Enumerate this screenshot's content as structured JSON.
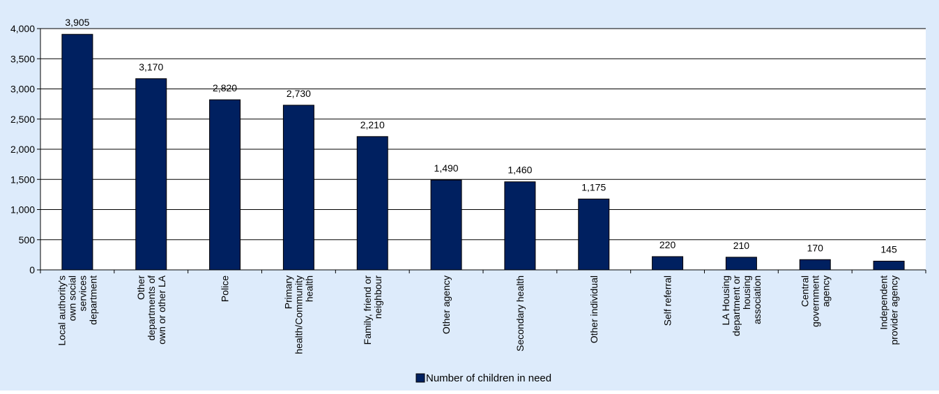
{
  "chart_data": {
    "type": "bar",
    "categories": [
      [
        "Local authority's",
        "own social",
        "services",
        "department"
      ],
      [
        "Other",
        "departments of",
        "own or other LA"
      ],
      [
        "Police"
      ],
      [
        "Primary",
        "health/Community",
        "health"
      ],
      [
        "Family, friend or",
        "neighbour"
      ],
      [
        "Other agency"
      ],
      [
        "Secondary health"
      ],
      [
        "Other individual"
      ],
      [
        "Self referral"
      ],
      [
        "LA Housing",
        "department or",
        "housing",
        "association"
      ],
      [
        "Central",
        "government",
        "agency"
      ],
      [
        "Independent",
        "provider agency"
      ]
    ],
    "series": [
      {
        "name": "Number of children in need",
        "values": [
          3905,
          3170,
          2820,
          2730,
          2210,
          1490,
          1460,
          1175,
          220,
          210,
          170,
          145
        ],
        "data_labels": [
          "3,905",
          "3,170",
          "2,820",
          "2,730",
          "2,210",
          "1,490",
          "1,460",
          "1,175",
          "220",
          "210",
          "170",
          "145"
        ]
      }
    ],
    "yticks": [
      {
        "value": 0,
        "label": "0"
      },
      {
        "value": 500,
        "label": "500"
      },
      {
        "value": 1000,
        "label": "1,000"
      },
      {
        "value": 1500,
        "label": "1,500"
      },
      {
        "value": 2000,
        "label": "2,000"
      },
      {
        "value": 2500,
        "label": "2,500"
      },
      {
        "value": 3000,
        "label": "3,000"
      },
      {
        "value": 3500,
        "label": "3,500"
      },
      {
        "value": 4000,
        "label": "4,000"
      }
    ],
    "ylim": [
      0,
      4000
    ],
    "grid": true,
    "legend_position": "bottom",
    "colors": {
      "bar": "#002060",
      "background": "#ddebfb",
      "plot_background": "#ffffff"
    }
  }
}
